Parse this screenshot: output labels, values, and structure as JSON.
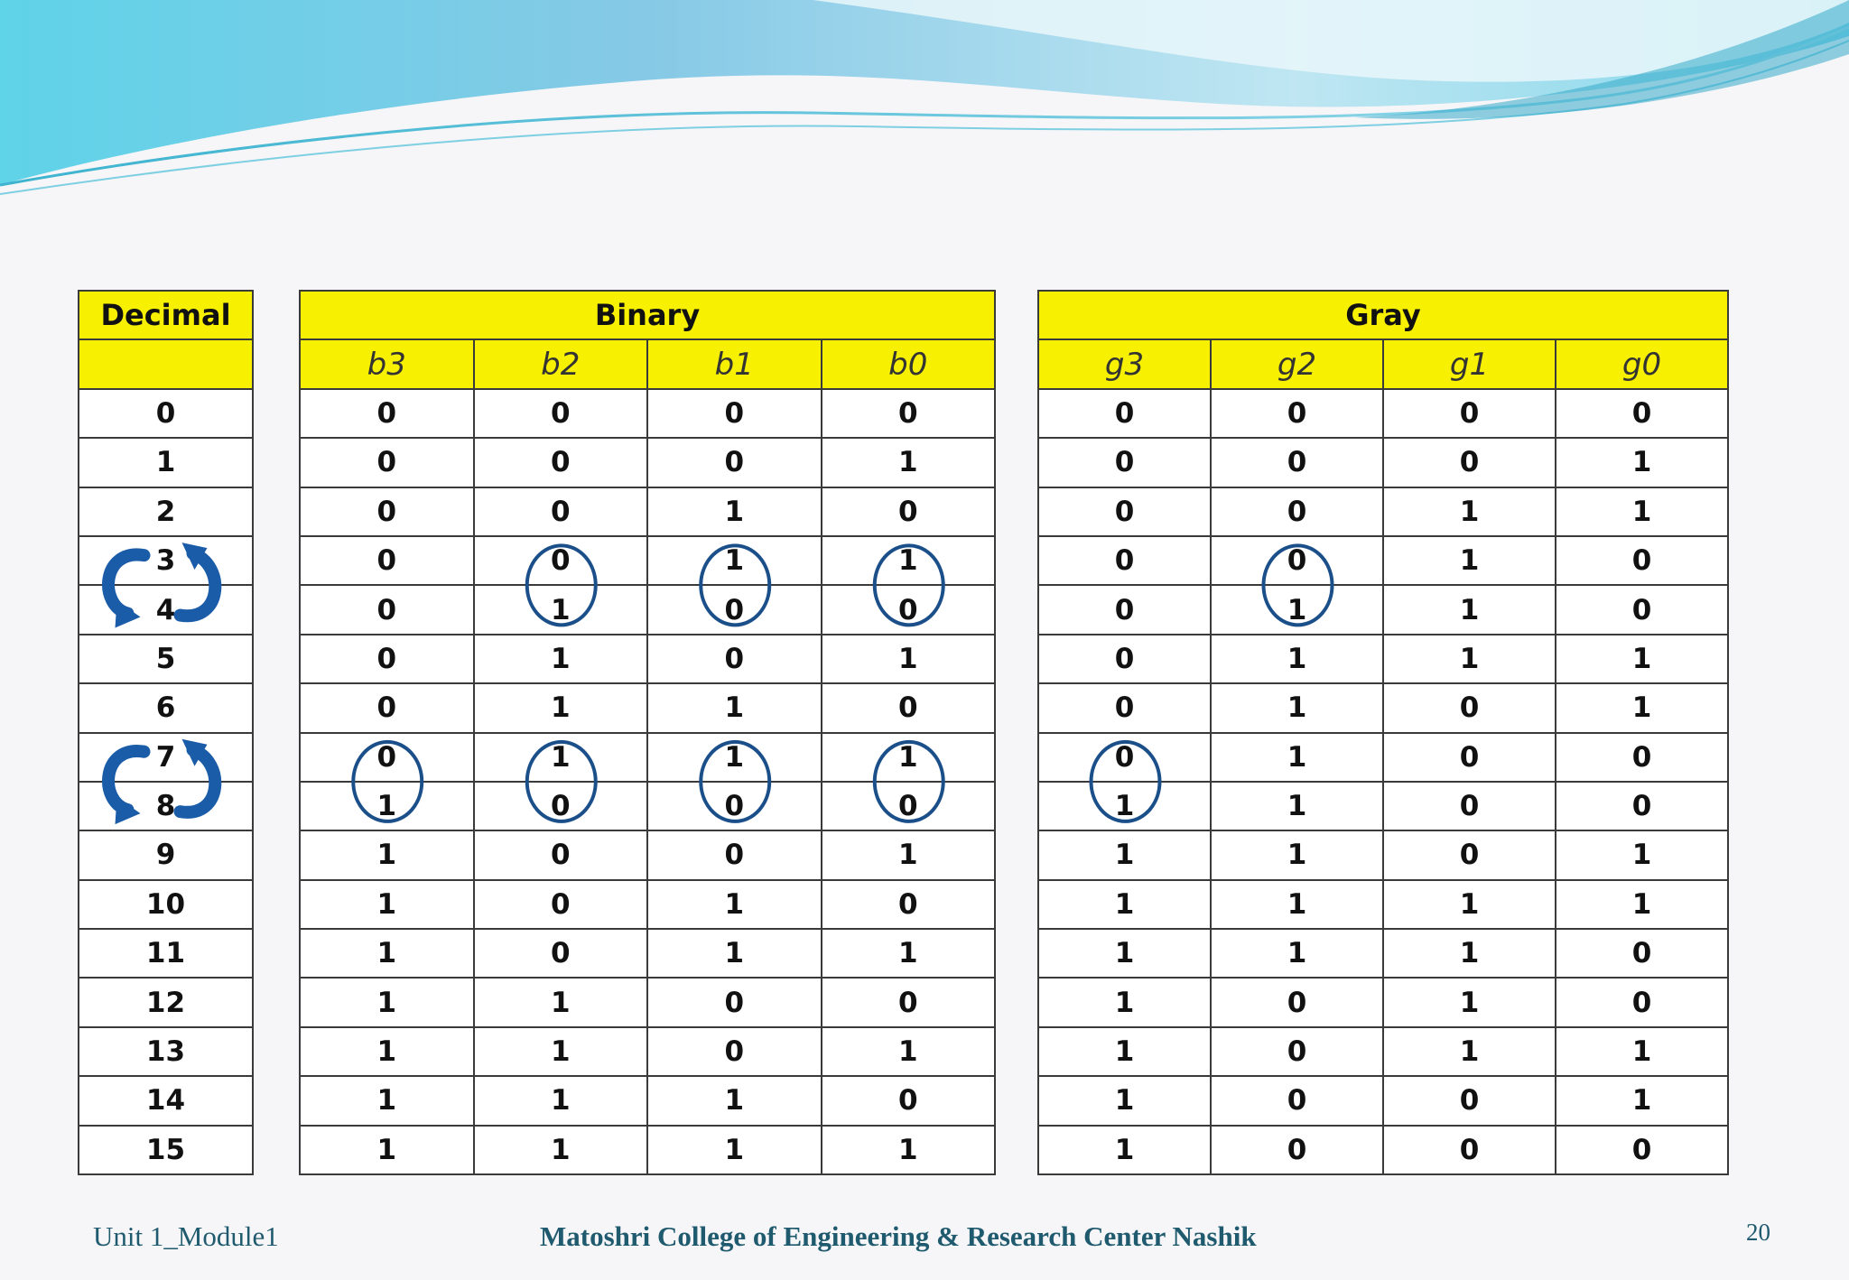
{
  "table": {
    "decimal_header": "Decimal",
    "binary_header": "Binary",
    "gray_header": "Gray",
    "binary_columns": [
      "b3",
      "b2",
      "b1",
      "b0"
    ],
    "gray_columns": [
      "g3",
      "g2",
      "g1",
      "g0"
    ],
    "rows": [
      {
        "decimal": "0",
        "binary": [
          "0",
          "0",
          "0",
          "0"
        ],
        "gray": [
          "0",
          "0",
          "0",
          "0"
        ]
      },
      {
        "decimal": "1",
        "binary": [
          "0",
          "0",
          "0",
          "1"
        ],
        "gray": [
          "0",
          "0",
          "0",
          "1"
        ]
      },
      {
        "decimal": "2",
        "binary": [
          "0",
          "0",
          "1",
          "0"
        ],
        "gray": [
          "0",
          "0",
          "1",
          "1"
        ]
      },
      {
        "decimal": "3",
        "binary": [
          "0",
          "0",
          "1",
          "1"
        ],
        "gray": [
          "0",
          "0",
          "1",
          "0"
        ]
      },
      {
        "decimal": "4",
        "binary": [
          "0",
          "1",
          "0",
          "0"
        ],
        "gray": [
          "0",
          "1",
          "1",
          "0"
        ]
      },
      {
        "decimal": "5",
        "binary": [
          "0",
          "1",
          "0",
          "1"
        ],
        "gray": [
          "0",
          "1",
          "1",
          "1"
        ]
      },
      {
        "decimal": "6",
        "binary": [
          "0",
          "1",
          "1",
          "0"
        ],
        "gray": [
          "0",
          "1",
          "0",
          "1"
        ]
      },
      {
        "decimal": "7",
        "binary": [
          "0",
          "1",
          "1",
          "1"
        ],
        "gray": [
          "0",
          "1",
          "0",
          "0"
        ]
      },
      {
        "decimal": "8",
        "binary": [
          "1",
          "0",
          "0",
          "0"
        ],
        "gray": [
          "1",
          "1",
          "0",
          "0"
        ]
      },
      {
        "decimal": "9",
        "binary": [
          "1",
          "0",
          "0",
          "1"
        ],
        "gray": [
          "1",
          "1",
          "0",
          "1"
        ]
      },
      {
        "decimal": "10",
        "binary": [
          "1",
          "0",
          "1",
          "0"
        ],
        "gray": [
          "1",
          "1",
          "1",
          "1"
        ]
      },
      {
        "decimal": "11",
        "binary": [
          "1",
          "0",
          "1",
          "1"
        ],
        "gray": [
          "1",
          "1",
          "1",
          "0"
        ]
      },
      {
        "decimal": "12",
        "binary": [
          "1",
          "1",
          "0",
          "0"
        ],
        "gray": [
          "1",
          "0",
          "1",
          "0"
        ]
      },
      {
        "decimal": "13",
        "binary": [
          "1",
          "1",
          "0",
          "1"
        ],
        "gray": [
          "1",
          "0",
          "1",
          "1"
        ]
      },
      {
        "decimal": "14",
        "binary": [
          "1",
          "1",
          "1",
          "0"
        ],
        "gray": [
          "1",
          "0",
          "0",
          "1"
        ]
      },
      {
        "decimal": "15",
        "binary": [
          "1",
          "1",
          "1",
          "1"
        ],
        "gray": [
          "1",
          "0",
          "0",
          "0"
        ]
      }
    ]
  },
  "annotations": {
    "highlights": [
      {
        "rows": [
          "3",
          "4"
        ],
        "binary_columns": [
          "b2",
          "b1",
          "b0"
        ],
        "gray_columns": [
          "g2"
        ]
      },
      {
        "rows": [
          "7",
          "8"
        ],
        "binary_columns": [
          "b3",
          "b2",
          "b1",
          "b0"
        ],
        "gray_columns": [
          "g3"
        ]
      }
    ],
    "circle_color": "#1b4f8a",
    "arrow_color": "#1a5ca8"
  },
  "footer": {
    "left": "Unit 1_Module1",
    "center": "Matoshri College of Engineering & Research Center Nashik",
    "page_number": "20"
  },
  "theme": {
    "yellow": "#f7f000",
    "wave_light": "#b7e8f0",
    "wave_dark": "#48bcd6"
  }
}
